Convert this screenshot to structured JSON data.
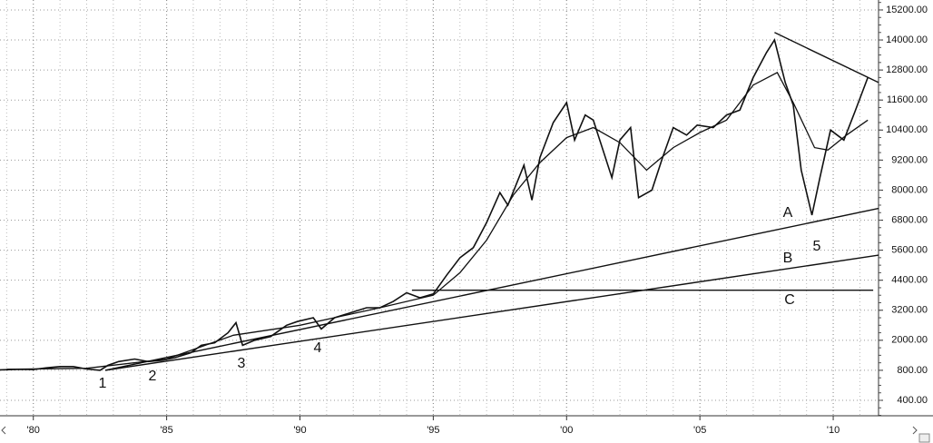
{
  "chart_data": {
    "type": "line",
    "log_scale": false,
    "grid": true,
    "xlim": [
      1978.75,
      2011.7
    ],
    "xticks": [
      {
        "value": 1980,
        "label": "'80"
      },
      {
        "value": 1985,
        "label": "'85"
      },
      {
        "value": 1990,
        "label": "'90"
      },
      {
        "value": 1995,
        "label": "'95"
      },
      {
        "value": 2000,
        "label": "'00"
      },
      {
        "value": 2005,
        "label": "'05"
      },
      {
        "value": 2010,
        "label": "'10"
      }
    ],
    "ylim": [
      200,
      15600
    ],
    "yticks": [
      {
        "value": 400,
        "label": "400.00"
      },
      {
        "value": 800,
        "label": "800.00"
      },
      {
        "value": 2000,
        "label": "2000.00"
      },
      {
        "value": 3200,
        "label": "3200.00"
      },
      {
        "value": 4400,
        "label": "4400.00"
      },
      {
        "value": 5600,
        "label": "5600.00"
      },
      {
        "value": 6800,
        "label": "6800.00"
      },
      {
        "value": 8000,
        "label": "8000.00"
      },
      {
        "value": 9200,
        "label": "9200.00"
      },
      {
        "value": 10400,
        "label": "10400.00"
      },
      {
        "value": 11600,
        "label": "11600.00"
      },
      {
        "value": 12800,
        "label": "12800.00"
      },
      {
        "value": 14000,
        "label": "14000.00"
      },
      {
        "value": 15200,
        "label": "15200.00"
      }
    ],
    "series": [
      {
        "color": "#111111",
        "x": [
          1978.75,
          1979.5,
          1980,
          1980.5,
          1981,
          1981.5,
          1982,
          1982.5,
          1982.8,
          1983.2,
          1983.8,
          1984.3,
          1984.8,
          1985.3,
          1985.9,
          1986.3,
          1986.8,
          1987.3,
          1987.6,
          1987.85,
          1988.3,
          1988.9,
          1989.5,
          1989.9,
          1990.5,
          1990.8,
          1991.3,
          1991.9,
          1992.5,
          1993,
          1993.5,
          1994,
          1994.5,
          1995,
          1995.5,
          1996,
          1996.5,
          1997,
          1997.5,
          1997.8,
          1998.4,
          1998.7,
          1999,
          1999.5,
          2000,
          2000.3,
          2000.7,
          2001,
          2001.7,
          2002,
          2002.4,
          2002.7,
          2003.2,
          2003.6,
          2004,
          2004.5,
          2004.9,
          2005.5,
          2006,
          2006.5,
          2007,
          2007.5,
          2007.8,
          2008.2,
          2008.5,
          2008.8,
          2009.2,
          2009.5,
          2009.9,
          2010.4,
          2010.8,
          2011.3
        ],
        "values": [
          820,
          840,
          830,
          900,
          950,
          950,
          850,
          800,
          1000,
          1150,
          1250,
          1150,
          1200,
          1300,
          1500,
          1800,
          1900,
          2300,
          2700,
          1800,
          2000,
          2150,
          2600,
          2750,
          2900,
          2450,
          2900,
          3100,
          3300,
          3300,
          3550,
          3900,
          3700,
          3850,
          4600,
          5300,
          5700,
          6700,
          7900,
          7400,
          9000,
          7600,
          9300,
          10700,
          11500,
          10000,
          11000,
          10800,
          8500,
          10000,
          10500,
          7700,
          8000,
          9300,
          10500,
          10200,
          10600,
          10500,
          11000,
          11200,
          12500,
          13500,
          14000,
          12300,
          11400,
          8800,
          7000,
          8500,
          10400,
          10000,
          11100,
          12500
        ]
      },
      {
        "color": "#111111",
        "x": [
          1979,
          1982,
          1985,
          1987.5,
          1990,
          1993,
          1995,
          1996,
          1997,
          1998,
          1999,
          2000,
          2001,
          2002,
          2003,
          2004,
          2005,
          2006,
          2007,
          2007.9,
          2008.5,
          2009.3,
          2009.8,
          2010.5,
          2011.3
        ],
        "values": [
          840,
          880,
          1250,
          2200,
          2600,
          3300,
          3800,
          4700,
          6000,
          7800,
          9100,
          10100,
          10500,
          9900,
          8800,
          9700,
          10300,
          10800,
          12200,
          12700,
          11500,
          9700,
          9600,
          10200,
          10800
        ]
      }
    ],
    "trendlines": [
      {
        "x": [
          1982.7,
          2011.7
        ],
        "values": [
          800,
          7270
        ]
      },
      {
        "x": [
          1982.7,
          2011.7
        ],
        "values": [
          800,
          5400
        ]
      },
      {
        "x": [
          1994.2,
          2011.5
        ],
        "values": [
          4000,
          4000
        ]
      },
      {
        "x": [
          2007.8,
          2011.7
        ],
        "values": [
          14300,
          12300
        ]
      }
    ],
    "annotations": [
      "1",
      "2",
      "3",
      "4",
      "5",
      "A",
      "B",
      "C"
    ]
  }
}
